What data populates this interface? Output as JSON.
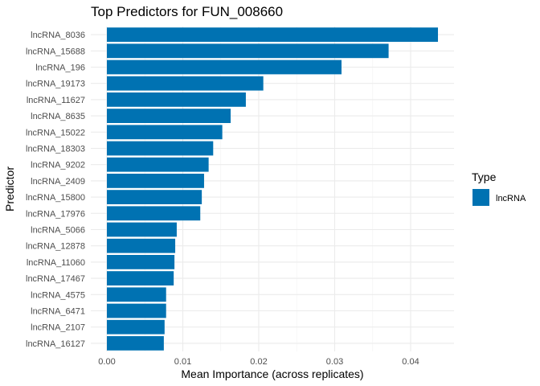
{
  "chart_data": {
    "type": "bar",
    "orientation": "horizontal",
    "title": "Top Predictors for FUN_008660",
    "xlabel": "Mean Importance (across replicates)",
    "ylabel": "Predictor",
    "xlim": [
      0,
      0.045
    ],
    "xticks": [
      "0.00",
      "0.01",
      "0.02",
      "0.03",
      "0.04"
    ],
    "grid": true,
    "legend": {
      "title": "Type",
      "placement": "right",
      "entries": [
        {
          "label": "lncRNA",
          "color": "#0072B2"
        }
      ]
    },
    "categories": [
      "lncRNA_8036",
      "lncRNA_15688",
      "lncRNA_196",
      "lncRNA_19173",
      "lncRNA_11627",
      "lncRNA_8635",
      "lncRNA_15022",
      "lncRNA_18303",
      "lncRNA_9202",
      "lncRNA_2409",
      "lncRNA_15800",
      "lncRNA_17976",
      "lncRNA_5066",
      "lncRNA_12878",
      "lncRNA_11060",
      "lncRNA_17467",
      "lncRNA_4575",
      "lncRNA_6471",
      "lncRNA_2107",
      "lncRNA_16127"
    ],
    "values": [
      0.0436,
      0.0371,
      0.0309,
      0.0206,
      0.0183,
      0.0163,
      0.0152,
      0.014,
      0.0134,
      0.0128,
      0.0125,
      0.0123,
      0.0092,
      0.009,
      0.0089,
      0.0088,
      0.0078,
      0.0078,
      0.0076,
      0.0075
    ],
    "bar_color": "#0072B2"
  }
}
